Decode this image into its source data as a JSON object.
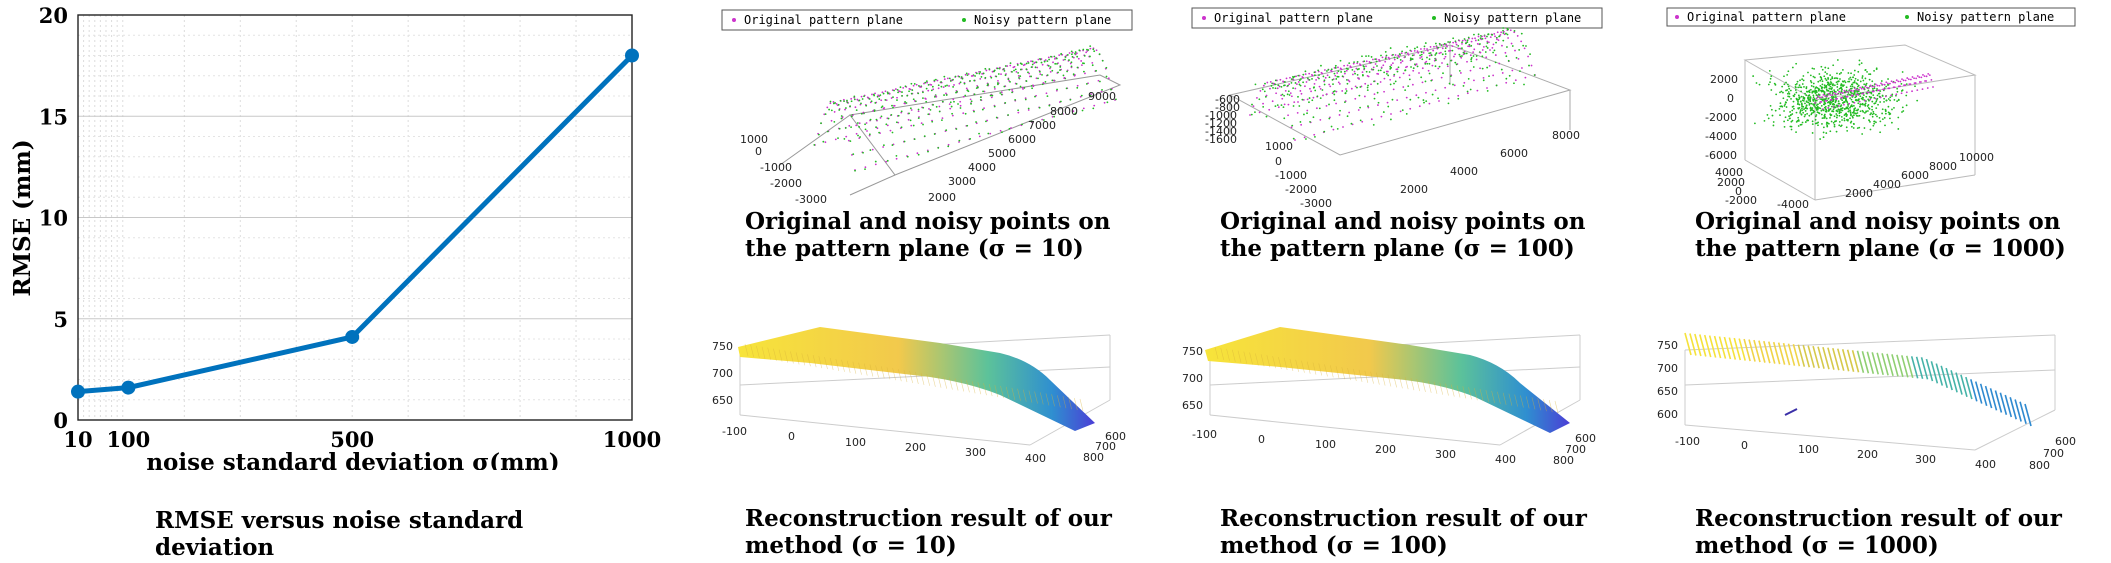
{
  "chart_data": {
    "type": "line",
    "xlabel": "noise standard deviation σ(mm)",
    "ylabel": "RMSE (mm)",
    "x": [
      10,
      100,
      500,
      1000
    ],
    "values": [
      1.4,
      1.6,
      4.1,
      18.0
    ],
    "x_ticks": [
      "10",
      "100",
      "500",
      "1000"
    ],
    "y_ticks": [
      "0",
      "5",
      "10",
      "15",
      "20"
    ],
    "xlim": [
      10,
      1000
    ],
    "ylim": [
      0,
      20
    ],
    "grid": true,
    "color": "#0072BD"
  },
  "captions": {
    "main": [
      "RMSE versus noise standard",
      "deviation"
    ],
    "p1": [
      "Original and noisy points on",
      "the pattern plane (σ = 10)"
    ],
    "p2": [
      "Original and noisy points on",
      "the pattern plane (σ = 100)"
    ],
    "p3": [
      "Original and noisy points on",
      "the pattern plane (σ = 1000)"
    ],
    "r1": [
      "Reconstruction result of our",
      "method (σ = 10)"
    ],
    "r2": [
      "Reconstruction result of our",
      "method (σ = 100)"
    ],
    "r3": [
      "Reconstruction result of our",
      "method (σ = 1000)"
    ]
  },
  "legend": {
    "original": "Original pattern plane",
    "noisy": "Noisy pattern plane"
  },
  "colors": {
    "original": "#cc33cc",
    "noisy": "#22bb22"
  },
  "panel_ticks": {
    "p1_z": [
      "1000",
      "0",
      "-1000",
      "-2000",
      "-3000"
    ],
    "p1_x": [
      "2000",
      "3000",
      "4000",
      "5000",
      "6000",
      "7000",
      "8000",
      "9000"
    ],
    "p2_z": [
      "-600",
      "-800",
      "-1000",
      "-1200",
      "-1400",
      "-1600"
    ],
    "p2_y": [
      "1000",
      "0",
      "-1000",
      "-2000",
      "-3000"
    ],
    "p2_x": [
      "2000",
      "4000",
      "6000",
      "8000"
    ],
    "p3_z": [
      "2000",
      "0",
      "-2000",
      "-4000",
      "-6000"
    ],
    "p3_y": [
      "4000",
      "2000",
      "0",
      "-2000",
      "-4000"
    ],
    "p3_x": [
      "2000",
      "4000",
      "6000",
      "8000",
      "10000"
    ],
    "r_z": [
      "750",
      "700",
      "650"
    ],
    "r_x": [
      "-100",
      "0",
      "100",
      "200",
      "300",
      "400"
    ],
    "r_y": [
      "600",
      "700",
      "800"
    ],
    "r3_z": [
      "750",
      "700",
      "650",
      "600"
    ]
  }
}
